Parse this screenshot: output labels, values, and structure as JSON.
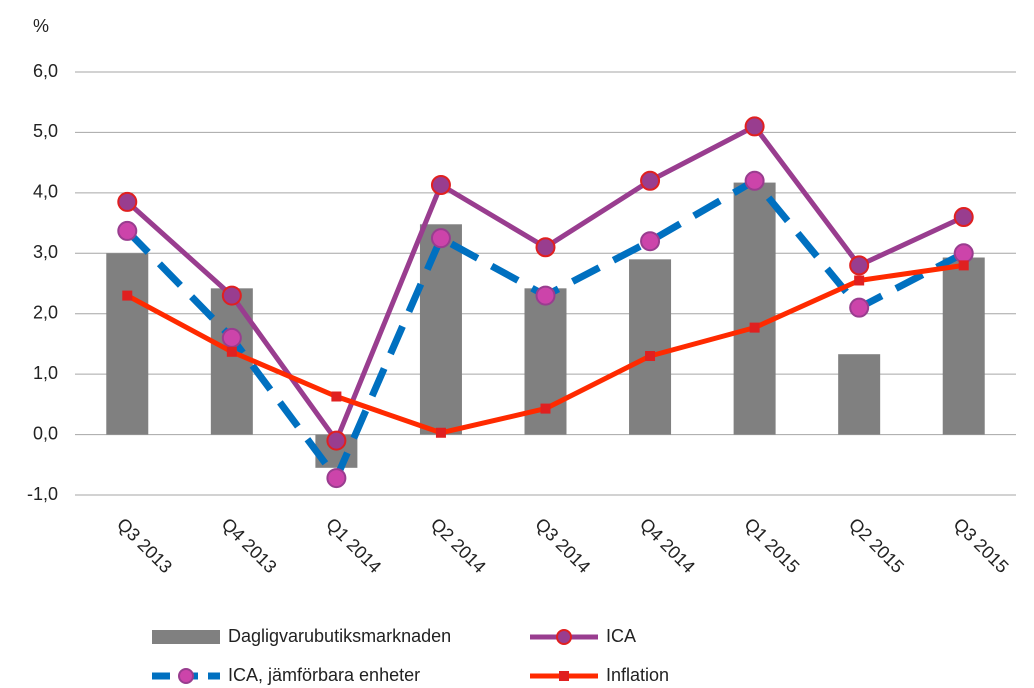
{
  "chart_data": {
    "type": "bar-line",
    "y_label": "%",
    "categories": [
      "Q3 2013",
      "Q4 2013",
      "Q1 2014",
      "Q2 2014",
      "Q3 2014",
      "Q4 2014",
      "Q1 2015",
      "Q2 2015",
      "Q3 2015"
    ],
    "series": [
      {
        "name": "Dagligvarubutiksmarknaden",
        "type": "bar",
        "color": "#808080",
        "values": [
          3.0,
          2.42,
          -0.55,
          3.48,
          2.42,
          2.9,
          4.17,
          1.33,
          2.93
        ]
      },
      {
        "name": "ICA",
        "type": "line",
        "color": "#993d8f",
        "marker_color": "#e02020",
        "marker": "circle",
        "values": [
          3.85,
          2.3,
          -0.1,
          4.13,
          3.1,
          4.2,
          5.1,
          2.8,
          3.6
        ]
      },
      {
        "name": "ICA, jämförbara enheter",
        "type": "dashed-line",
        "color": "#0070c0",
        "marker_color": "#cc44aa",
        "marker": "circle",
        "values": [
          3.37,
          1.6,
          -0.72,
          3.25,
          2.3,
          3.2,
          4.2,
          2.1,
          3.0
        ]
      },
      {
        "name": "Inflation",
        "type": "line",
        "color": "#ff2a00",
        "marker_color": "#e02020",
        "marker": "square",
        "values": [
          2.3,
          1.37,
          0.63,
          0.03,
          0.43,
          1.3,
          1.77,
          2.55,
          2.8
        ]
      }
    ],
    "ylim": [
      -1,
      6
    ],
    "yticks": [
      {
        "value": -1,
        "label": "-1,0"
      },
      {
        "value": 0,
        "label": "0,0"
      },
      {
        "value": 1,
        "label": "1,0"
      },
      {
        "value": 2,
        "label": "2,0"
      },
      {
        "value": 3,
        "label": "3,0"
      },
      {
        "value": 4,
        "label": "4,0"
      },
      {
        "value": 5,
        "label": "5,0"
      },
      {
        "value": 6,
        "label": "6,0"
      }
    ],
    "grid": true
  }
}
